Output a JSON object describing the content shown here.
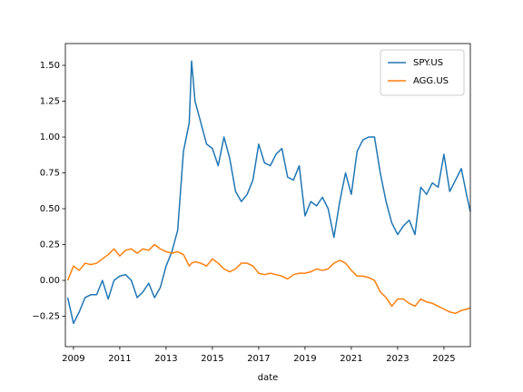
{
  "chart_data": {
    "type": "line",
    "xlabel": "date",
    "x": [
      2008.75,
      2009,
      2009.25,
      2009.5,
      2009.75,
      2010,
      2010.25,
      2010.5,
      2010.75,
      2011,
      2011.25,
      2011.5,
      2011.75,
      2012,
      2012.25,
      2012.5,
      2012.75,
      2013,
      2013.25,
      2013.5,
      2013.75,
      2014,
      2014.1,
      2014.25,
      2014.5,
      2014.75,
      2015,
      2015.25,
      2015.5,
      2015.75,
      2016,
      2016.25,
      2016.5,
      2016.75,
      2017,
      2017.25,
      2017.5,
      2017.75,
      2018,
      2018.25,
      2018.5,
      2018.75,
      2019,
      2019.25,
      2019.5,
      2019.75,
      2020,
      2020.25,
      2020.5,
      2020.75,
      2021,
      2021.25,
      2021.5,
      2021.75,
      2022,
      2022.25,
      2022.5,
      2022.75,
      2023,
      2023.25,
      2023.5,
      2023.75,
      2024,
      2024.25,
      2024.5,
      2024.75,
      2025,
      2025.25,
      2025.5,
      2025.75,
      2026,
      2026.14
    ],
    "series": [
      {
        "name": "SPY.US",
        "color": "#1f77b4",
        "values": [
          -0.12,
          -0.3,
          -0.22,
          -0.12,
          -0.1,
          -0.1,
          0.0,
          -0.13,
          0.0,
          0.03,
          0.04,
          0.0,
          -0.12,
          -0.08,
          -0.02,
          -0.12,
          -0.05,
          0.1,
          0.2,
          0.35,
          0.9,
          1.1,
          1.53,
          1.25,
          1.1,
          0.95,
          0.92,
          0.8,
          1.0,
          0.85,
          0.62,
          0.55,
          0.6,
          0.7,
          0.95,
          0.82,
          0.8,
          0.88,
          0.92,
          0.72,
          0.7,
          0.8,
          0.45,
          0.55,
          0.52,
          0.58,
          0.5,
          0.3,
          0.55,
          0.75,
          0.6,
          0.9,
          0.98,
          1.0,
          1.0,
          0.75,
          0.55,
          0.4,
          0.32,
          0.38,
          0.42,
          0.32,
          0.65,
          0.6,
          0.68,
          0.65,
          0.88,
          0.62,
          0.7,
          0.78,
          0.58,
          0.48
        ]
      },
      {
        "name": "AGG.US",
        "color": "#ff7f0e",
        "values": [
          0.0,
          0.1,
          0.07,
          0.12,
          0.11,
          0.12,
          0.15,
          0.18,
          0.22,
          0.17,
          0.21,
          0.22,
          0.19,
          0.22,
          0.21,
          0.25,
          0.22,
          0.2,
          0.19,
          0.2,
          0.18,
          0.1,
          0.12,
          0.13,
          0.12,
          0.1,
          0.15,
          0.12,
          0.08,
          0.06,
          0.08,
          0.12,
          0.12,
          0.1,
          0.05,
          0.04,
          0.05,
          0.04,
          0.03,
          0.01,
          0.04,
          0.05,
          0.05,
          0.06,
          0.08,
          0.07,
          0.08,
          0.12,
          0.14,
          0.12,
          0.07,
          0.03,
          0.03,
          0.02,
          0.0,
          -0.08,
          -0.12,
          -0.18,
          -0.13,
          -0.13,
          -0.16,
          -0.18,
          -0.13,
          -0.15,
          -0.16,
          -0.18,
          -0.2,
          -0.22,
          -0.23,
          -0.21,
          -0.2,
          -0.19
        ]
      }
    ],
    "xlim": [
      2008.65,
      2026.14
    ],
    "ylim": [
      -0.462,
      1.652
    ],
    "xticks": [
      2009,
      2011,
      2013,
      2015,
      2017,
      2019,
      2021,
      2023,
      2025
    ],
    "yticks": [
      {
        "value": -0.25,
        "label": "−0.25"
      },
      {
        "value": 0,
        "label": "0.00"
      },
      {
        "value": 0.25,
        "label": "0.25"
      },
      {
        "value": 0.5,
        "label": "0.50"
      },
      {
        "value": 0.75,
        "label": "0.75"
      },
      {
        "value": 1,
        "label": "1.00"
      },
      {
        "value": 1.25,
        "label": "1.25"
      },
      {
        "value": 1.5,
        "label": "1.50"
      }
    ],
    "legend": "upper right"
  }
}
